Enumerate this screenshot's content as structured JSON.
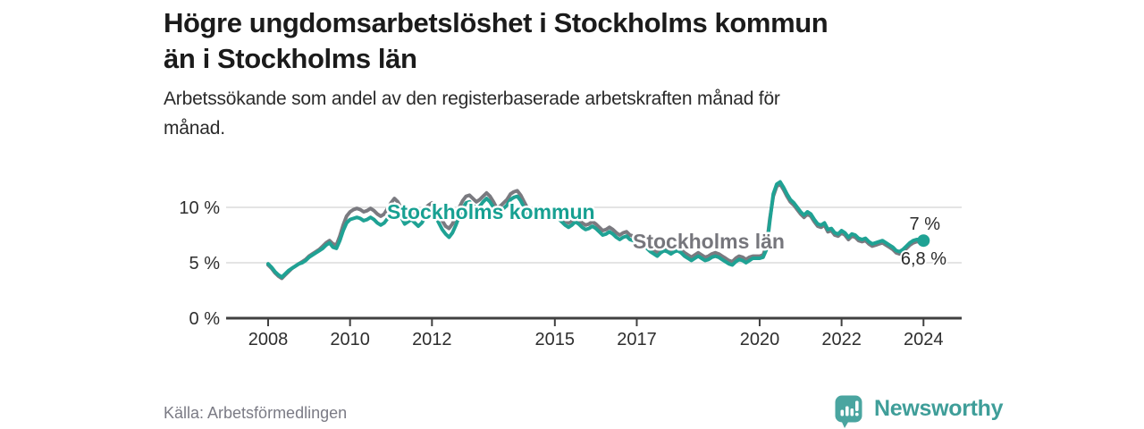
{
  "header": {
    "title_lines": [
      "Högre ungdomsarbetslöshet i Stockholms kommun",
      "än i Stockholms län"
    ],
    "subtitle_lines": [
      "Arbetssökande som andel av den registerbaserade arbetskraften månad för",
      "månad."
    ]
  },
  "footer": {
    "source": "Källa: Arbetsförmedlingen",
    "brand_name": "Newsworthy"
  },
  "colors": {
    "kommun_line": "#1fa294",
    "lan_line": "#7a7a80",
    "gridline": "#dbdbdb",
    "axis": "#404040",
    "tick_text": "#2e2e2e",
    "brand_teal": "#3f9e99",
    "source_text": "#7b7b85"
  },
  "chart_data": {
    "type": "line",
    "title": "Högre ungdomsarbetslöshet i Stockholms kommun än i Stockholms län",
    "subtitle": "Arbetssökande som andel av den registerbaserade arbetskraften månad för månad.",
    "source": "Källa: Arbetsförmedlingen",
    "xlabel": "",
    "ylabel": "",
    "x_unit": "monthly",
    "x_start_year": 2008,
    "x_end_year": 2024,
    "xlim": [
      2007,
      2024.9
    ],
    "ylim": [
      0,
      13
    ],
    "grid": "horizontal",
    "legend_position": "inline-labels",
    "x_ticks": [
      {
        "year": 2008,
        "label": "2008"
      },
      {
        "year": 2010,
        "label": "2010"
      },
      {
        "year": 2012,
        "label": "2012"
      },
      {
        "year": 2015,
        "label": "2015"
      },
      {
        "year": 2017,
        "label": "2017"
      },
      {
        "year": 2020,
        "label": "2020"
      },
      {
        "year": 2022,
        "label": "2022"
      },
      {
        "year": 2024,
        "label": "2024"
      }
    ],
    "y_ticks": [
      {
        "value": 0,
        "label": "0 %"
      },
      {
        "value": 5,
        "label": "5 %"
      },
      {
        "value": 10,
        "label": "10 %"
      }
    ],
    "series": [
      {
        "name": "Stockholms kommun",
        "color": "#1fa294",
        "end_label": "7 %",
        "end_dot": true,
        "values": [
          4.9,
          4.6,
          4.2,
          3.9,
          3.7,
          4.0,
          4.3,
          4.5,
          4.7,
          4.9,
          5.0,
          5.2,
          5.5,
          5.7,
          5.9,
          6.1,
          6.3,
          6.6,
          6.8,
          6.4,
          6.3,
          7.0,
          7.9,
          8.6,
          8.9,
          9.0,
          9.1,
          9.0,
          8.8,
          8.9,
          9.1,
          8.9,
          8.6,
          8.4,
          8.6,
          9.0,
          9.5,
          9.9,
          9.6,
          9.1,
          8.5,
          8.7,
          8.9,
          8.6,
          8.3,
          8.6,
          9.1,
          9.4,
          9.6,
          9.2,
          8.6,
          8.0,
          7.6,
          7.3,
          7.7,
          8.4,
          9.2,
          9.9,
          10.4,
          10.5,
          10.2,
          9.9,
          10.1,
          10.5,
          10.8,
          10.5,
          10.0,
          9.4,
          9.6,
          9.9,
          10.2,
          10.7,
          10.9,
          11.0,
          10.6,
          10.0,
          9.4,
          9.1,
          9.4,
          9.6,
          9.3,
          9.0,
          9.1,
          9.3,
          9.2,
          9.0,
          8.7,
          8.4,
          8.2,
          8.4,
          8.7,
          8.5,
          8.2,
          8.0,
          8.1,
          8.3,
          8.1,
          7.8,
          7.5,
          7.6,
          7.8,
          7.6,
          7.3,
          7.1,
          7.3,
          7.4,
          7.1,
          7.0,
          7.1,
          6.9,
          6.6,
          6.3,
          6.0,
          5.8,
          5.6,
          5.9,
          6.1,
          6.0,
          5.8,
          6.0,
          6.1,
          5.9,
          5.6,
          5.4,
          5.2,
          5.4,
          5.6,
          5.4,
          5.2,
          5.3,
          5.5,
          5.6,
          5.5,
          5.3,
          5.1,
          4.9,
          4.8,
          5.1,
          5.3,
          5.2,
          5.0,
          5.2,
          5.4,
          5.4,
          5.4,
          5.5,
          6.2,
          8.8,
          11.2,
          12.1,
          12.3,
          11.8,
          11.2,
          10.7,
          10.4,
          10.0,
          9.6,
          9.3,
          9.6,
          9.4,
          8.9,
          8.5,
          8.4,
          8.6,
          8.0,
          8.1,
          7.7,
          7.6,
          7.9,
          7.7,
          7.3,
          7.6,
          7.5,
          7.2,
          7.1,
          7.2,
          6.9,
          6.7,
          6.8,
          6.9,
          7.0,
          6.8,
          6.6,
          6.4,
          6.1,
          6.0,
          6.2,
          6.5,
          6.8,
          7.0,
          7.1,
          7.1,
          7.0
        ]
      },
      {
        "name": "Stockholms län",
        "color": "#7a7a80",
        "end_label": "6,8 %",
        "end_dot": false,
        "values": [
          4.8,
          4.5,
          4.1,
          3.8,
          3.6,
          3.9,
          4.2,
          4.5,
          4.7,
          4.9,
          5.1,
          5.3,
          5.6,
          5.8,
          6.0,
          6.2,
          6.5,
          6.8,
          7.0,
          6.7,
          6.6,
          7.4,
          8.4,
          9.2,
          9.6,
          9.8,
          9.9,
          9.8,
          9.6,
          9.7,
          9.9,
          9.7,
          9.4,
          9.2,
          9.4,
          9.9,
          10.4,
          10.8,
          10.5,
          9.9,
          9.3,
          9.5,
          9.7,
          9.4,
          9.1,
          9.4,
          9.9,
          10.2,
          10.4,
          10.0,
          9.4,
          8.8,
          8.3,
          8.1,
          8.5,
          9.2,
          10.0,
          10.6,
          11.0,
          11.1,
          10.8,
          10.5,
          10.7,
          11.0,
          11.3,
          11.0,
          10.5,
          9.9,
          10.1,
          10.4,
          10.7,
          11.2,
          11.4,
          11.5,
          11.1,
          10.5,
          9.9,
          9.6,
          9.9,
          10.0,
          9.7,
          9.4,
          9.5,
          9.7,
          9.6,
          9.4,
          9.1,
          8.8,
          8.6,
          8.8,
          9.1,
          8.9,
          8.6,
          8.4,
          8.5,
          8.7,
          8.5,
          8.2,
          7.9,
          8.0,
          8.2,
          8.0,
          7.7,
          7.5,
          7.7,
          7.8,
          7.5,
          7.4,
          7.4,
          7.2,
          6.9,
          6.6,
          6.3,
          6.1,
          5.9,
          6.2,
          6.4,
          6.3,
          6.1,
          6.3,
          6.4,
          6.2,
          5.9,
          5.7,
          5.5,
          5.7,
          5.9,
          5.7,
          5.5,
          5.6,
          5.8,
          5.9,
          5.8,
          5.6,
          5.4,
          5.2,
          5.1,
          5.4,
          5.6,
          5.5,
          5.3,
          5.5,
          5.6,
          5.6,
          5.6,
          5.7,
          6.5,
          9.0,
          11.0,
          11.9,
          12.1,
          11.6,
          11.0,
          10.5,
          10.2,
          9.8,
          9.4,
          9.1,
          9.4,
          9.2,
          8.7,
          8.3,
          8.2,
          8.4,
          7.8,
          7.9,
          7.5,
          7.4,
          7.7,
          7.5,
          7.1,
          7.4,
          7.3,
          7.0,
          6.9,
          7.0,
          6.7,
          6.5,
          6.6,
          6.7,
          6.8,
          6.6,
          6.4,
          6.2,
          5.9,
          5.8,
          6.0,
          6.3,
          6.6,
          6.8,
          6.9,
          6.9,
          6.8
        ]
      }
    ]
  }
}
